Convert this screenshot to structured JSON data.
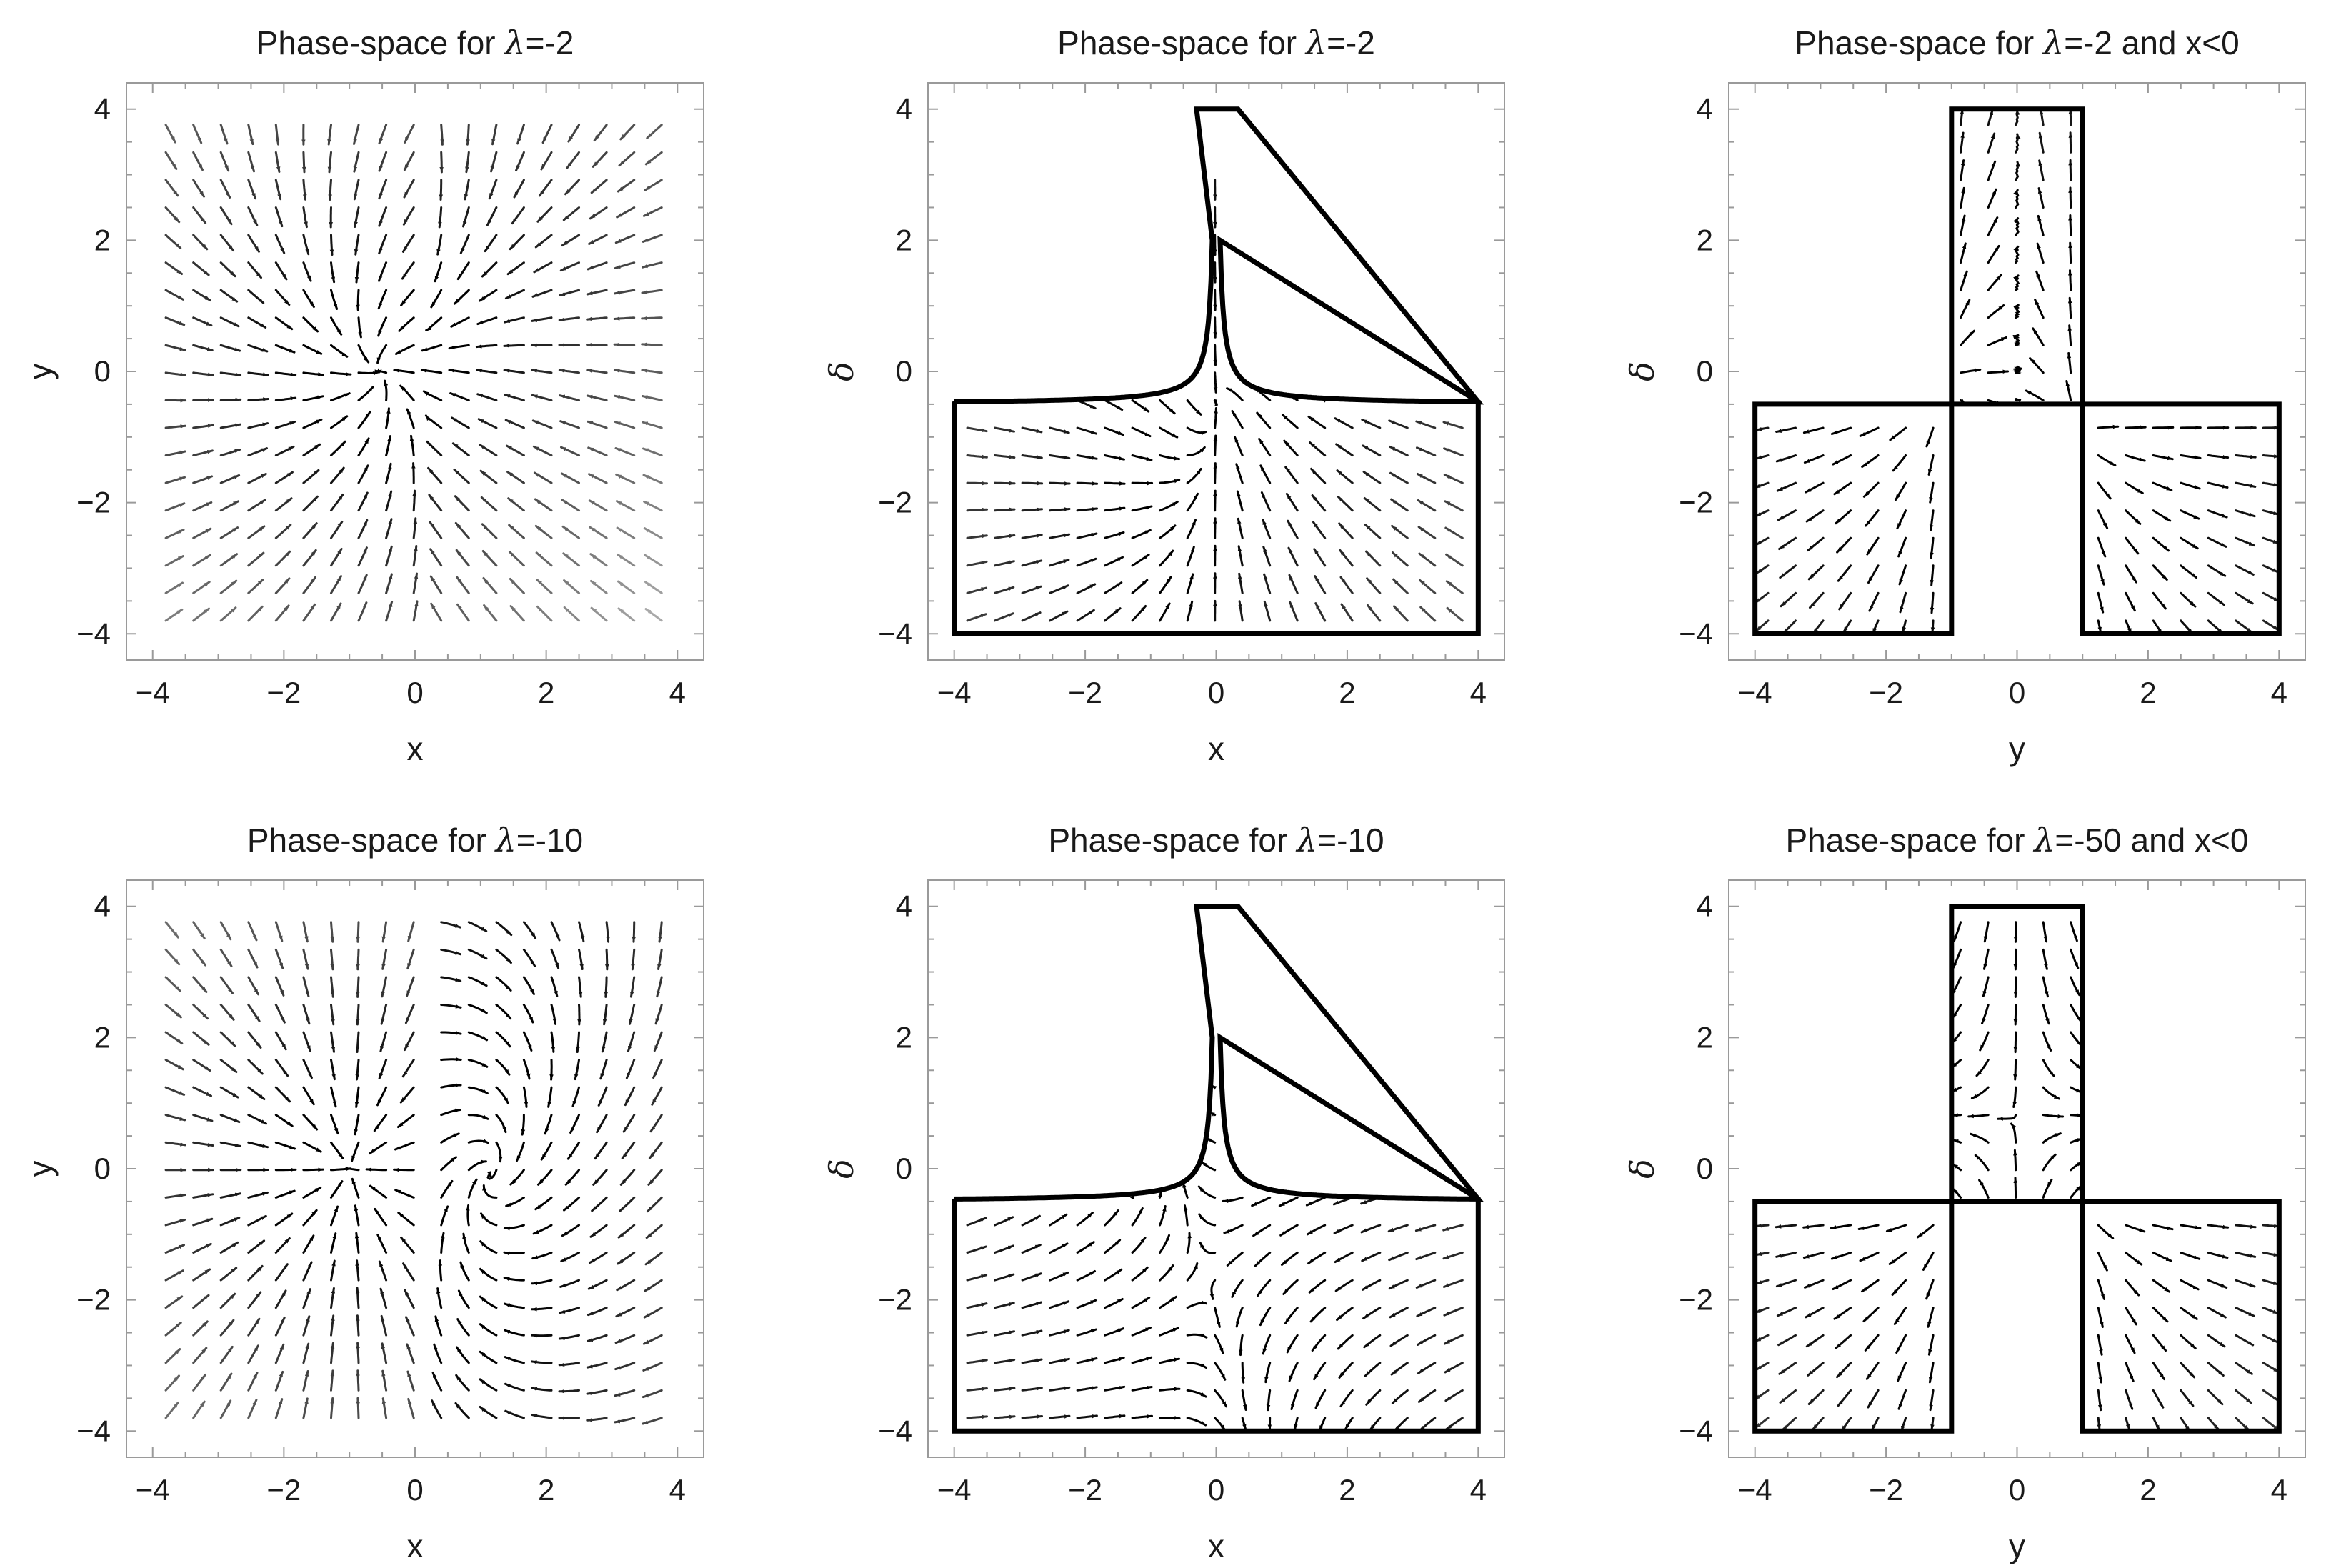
{
  "chart_data": [
    {
      "type": "streamplot",
      "title_prefix": "Phase-space for ",
      "title_symbol": "λ",
      "title_suffix": "=-2",
      "xlabel": "x",
      "ylabel": "y",
      "xlim": [
        -4.4,
        4.4
      ],
      "ylim": [
        -4.4,
        4.4
      ],
      "xticks": [
        -4,
        -2,
        0,
        2,
        4
      ],
      "yticks": [
        -4,
        -2,
        0,
        2,
        4
      ],
      "field": "xy2",
      "region": "none"
    },
    {
      "type": "streamplot",
      "title_prefix": "Phase-space for ",
      "title_symbol": "λ",
      "title_suffix": "=-2",
      "xlabel": "x",
      "ylabel": "δ",
      "xlim": [
        -4.4,
        4.4
      ],
      "ylim": [
        -4.4,
        4.4
      ],
      "xticks": [
        -4,
        -2,
        0,
        2,
        4
      ],
      "yticks": [
        -4,
        -2,
        0,
        2,
        4
      ],
      "field": "xd2",
      "region": "tshape-curved"
    },
    {
      "type": "streamplot",
      "title_prefix": "Phase-space for ",
      "title_symbol": "λ",
      "title_suffix": "=-2 and x<0",
      "xlabel": "y",
      "ylabel": "δ",
      "xlim": [
        -4.4,
        4.4
      ],
      "ylim": [
        -4.4,
        4.4
      ],
      "xticks": [
        -4,
        -2,
        0,
        2,
        4
      ],
      "yticks": [
        -4,
        -2,
        0,
        2,
        4
      ],
      "field": "yd2",
      "region": "cross-boxes"
    },
    {
      "type": "streamplot",
      "title_prefix": "Phase-space for ",
      "title_symbol": "λ",
      "title_suffix": "=-10",
      "xlabel": "x",
      "ylabel": "y",
      "xlim": [
        -4.4,
        4.4
      ],
      "ylim": [
        -4.4,
        4.4
      ],
      "xticks": [
        -4,
        -2,
        0,
        2,
        4
      ],
      "yticks": [
        -4,
        -2,
        0,
        2,
        4
      ],
      "field": "xy10",
      "region": "none"
    },
    {
      "type": "streamplot",
      "title_prefix": "Phase-space for ",
      "title_symbol": "λ",
      "title_suffix": "=-10",
      "xlabel": "x",
      "ylabel": "δ",
      "xlim": [
        -4.4,
        4.4
      ],
      "ylim": [
        -4.4,
        4.4
      ],
      "xticks": [
        -4,
        -2,
        0,
        2,
        4
      ],
      "yticks": [
        -4,
        -2,
        0,
        2,
        4
      ],
      "field": "xd10",
      "region": "tshape-curved"
    },
    {
      "type": "streamplot",
      "title_prefix": "Phase-space for ",
      "title_symbol": "λ",
      "title_suffix": "=-50 and x<0",
      "xlabel": "y",
      "ylabel": "δ",
      "xlim": [
        -4.4,
        4.4
      ],
      "ylim": [
        -4.4,
        4.4
      ],
      "xticks": [
        -4,
        -2,
        0,
        2,
        4
      ],
      "yticks": [
        -4,
        -2,
        0,
        2,
        4
      ],
      "field": "yd50",
      "region": "cross-boxes"
    }
  ]
}
